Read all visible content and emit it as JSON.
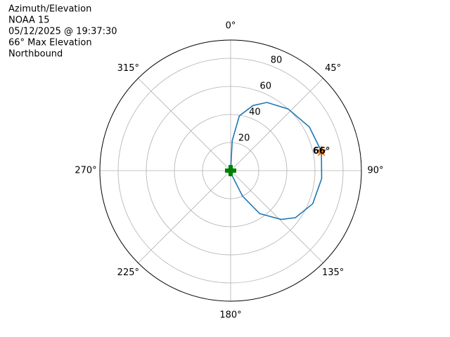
{
  "chart_data": {
    "type": "polar",
    "title_lines": [
      "Azimuth/Elevation",
      "NOAA 15",
      "05/12/2025 @ 19:37:30",
      "66° Max Elevation",
      "Northbound"
    ],
    "xticks": [
      {
        "value": 0,
        "label": "0°"
      },
      {
        "value": 45,
        "label": "45°"
      },
      {
        "value": 90,
        "label": "90°"
      },
      {
        "value": 135,
        "label": "135°"
      },
      {
        "value": 180,
        "label": "180°"
      },
      {
        "value": 225,
        "label": "225°"
      },
      {
        "value": 270,
        "label": "270°"
      },
      {
        "value": 315,
        "label": "315°"
      }
    ],
    "ylim": [
      0,
      93
    ],
    "yticks": [
      20,
      40,
      60,
      80
    ],
    "grid": true,
    "series": [
      {
        "color": "#1f77b4",
        "x": [
          0,
          3,
          9,
          19,
          28,
          43,
          61,
          78,
          95,
          112,
          126,
          134,
          146,
          155,
          164
        ],
        "values": [
          0,
          21.5,
          39.5,
          49,
          55,
          60,
          64,
          66,
          65,
          63,
          57,
          50,
          37,
          20,
          3.6
        ]
      }
    ],
    "max_point": {
      "x": 78,
      "value": 66,
      "label": "66°",
      "color": "#ff7f0e"
    },
    "start_point": {
      "x": 0,
      "value": 0,
      "color": "#008000"
    }
  }
}
